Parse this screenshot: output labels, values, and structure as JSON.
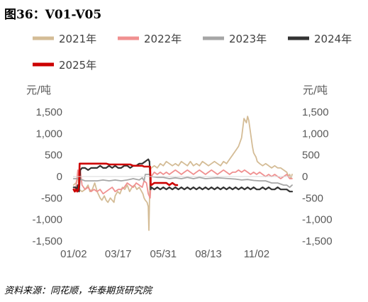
{
  "figure": {
    "title": "图36：V01-V05",
    "source": "资料来源：同花顺，华泰期货研究院"
  },
  "chart_data": {
    "type": "line",
    "y_unit_left": "元/吨",
    "y_unit_right": "元/吨",
    "xlabel": "",
    "ylabel": "",
    "ylim": [
      -1500,
      1500
    ],
    "yticks": [
      1500,
      1000,
      500,
      0,
      -500,
      -1000,
      -1500
    ],
    "ytick_labels": [
      "1,500",
      "1,000",
      "500",
      "0",
      "-500",
      "-1,000",
      "-1,500"
    ],
    "xlim": [
      0,
      364
    ],
    "xticks": [
      1,
      75,
      150,
      225,
      305
    ],
    "xtick_labels": [
      "01/02",
      "03/17",
      "05/31",
      "08/13",
      "11/02"
    ],
    "grid": false,
    "legend": "top",
    "series": [
      {
        "name": "2021年",
        "color": "#d4bc96",
        "x": [
          1,
          5,
          8,
          10,
          15,
          20,
          25,
          28,
          32,
          36,
          40,
          45,
          48,
          52,
          55,
          58,
          62,
          65,
          68,
          70,
          74,
          78,
          82,
          86,
          90,
          94,
          98,
          102,
          106,
          110,
          114,
          116,
          118,
          120,
          123,
          125,
          126,
          128,
          130,
          135,
          140,
          145,
          150,
          155,
          160,
          165,
          170,
          175,
          180,
          185,
          190,
          195,
          200,
          205,
          210,
          215,
          220,
          225,
          230,
          235,
          240,
          245,
          250,
          255,
          260,
          265,
          270,
          275,
          280,
          284,
          288,
          290,
          292,
          294,
          296,
          298,
          300,
          302,
          304,
          306,
          310,
          315,
          320,
          325,
          330,
          335,
          340,
          345,
          350,
          355,
          358,
          360,
          362,
          364
        ],
        "y": [
          -200,
          -150,
          0,
          -300,
          -350,
          -300,
          -200,
          -350,
          -300,
          -150,
          -350,
          -500,
          -550,
          -450,
          -550,
          -600,
          -500,
          -550,
          -600,
          -450,
          -350,
          -400,
          -250,
          -300,
          -200,
          -350,
          -250,
          -200,
          -300,
          -250,
          -350,
          -400,
          -500,
          -550,
          -600,
          -700,
          -1250,
          150,
          200,
          250,
          200,
          300,
          250,
          350,
          300,
          250,
          300,
          250,
          350,
          300,
          250,
          350,
          250,
          300,
          250,
          350,
          300,
          250,
          300,
          350,
          300,
          250,
          350,
          300,
          400,
          500,
          600,
          700,
          900,
          1350,
          1250,
          1400,
          1300,
          1100,
          900,
          700,
          550,
          500,
          450,
          350,
          300,
          250,
          300,
          250,
          200,
          250,
          200,
          200,
          150,
          100,
          0,
          50,
          -50,
          50
        ]
      },
      {
        "name": "2022年",
        "color": "#f09090",
        "x": [
          1,
          5,
          8,
          10,
          12,
          15,
          20,
          25,
          30,
          35,
          40,
          45,
          50,
          55,
          60,
          65,
          70,
          75,
          80,
          85,
          90,
          95,
          100,
          105,
          110,
          115,
          118,
          122,
          125,
          128,
          130,
          135,
          140,
          145,
          150,
          155,
          160,
          165,
          170,
          175,
          180,
          185,
          190,
          195,
          200,
          205,
          210,
          215,
          220,
          225,
          230,
          235,
          240,
          245,
          250,
          255,
          260,
          265,
          270,
          275,
          280,
          285,
          290,
          295,
          300,
          305,
          310,
          315,
          320,
          325,
          330,
          335,
          340,
          345,
          350,
          355,
          360,
          364
        ],
        "y": [
          -300,
          -250,
          150,
          -100,
          150,
          -200,
          -300,
          -250,
          -350,
          -300,
          -350,
          -300,
          -400,
          -350,
          -300,
          -250,
          -350,
          -300,
          -300,
          -250,
          -150,
          -200,
          -250,
          -150,
          -200,
          -250,
          -100,
          -150,
          -400,
          -500,
          0,
          100,
          50,
          100,
          50,
          100,
          50,
          100,
          150,
          100,
          50,
          100,
          150,
          100,
          50,
          100,
          150,
          100,
          50,
          100,
          150,
          100,
          50,
          100,
          150,
          100,
          50,
          100,
          100,
          150,
          100,
          150,
          100,
          50,
          100,
          50,
          100,
          50,
          0,
          50,
          0,
          50,
          0,
          -50,
          0,
          50,
          -50,
          -50
        ]
      },
      {
        "name": "2023年",
        "color": "#a6a6a6",
        "x": [
          1,
          10,
          20,
          30,
          40,
          50,
          60,
          70,
          80,
          90,
          100,
          110,
          115,
          118,
          120,
          125,
          128,
          130,
          140,
          150,
          160,
          170,
          180,
          190,
          200,
          210,
          220,
          230,
          240,
          250,
          260,
          270,
          280,
          290,
          300,
          310,
          320,
          330,
          340,
          350,
          355,
          360,
          364
        ],
        "y": [
          -50,
          -50,
          -100,
          -100,
          -100,
          -80,
          -100,
          -80,
          -100,
          -80,
          -50,
          -80,
          -30,
          -100,
          50,
          50,
          50,
          0,
          -20,
          -20,
          -50,
          -30,
          -50,
          -20,
          -50,
          -20,
          -50,
          -40,
          -30,
          -40,
          -50,
          -60,
          -80,
          -70,
          -90,
          -100,
          -100,
          -150,
          -150,
          -200,
          -200,
          -250,
          -200
        ]
      },
      {
        "name": "2024年",
        "color": "#333333",
        "x": [
          1,
          4,
          6,
          8,
          10,
          12,
          15,
          20,
          25,
          30,
          35,
          40,
          45,
          50,
          55,
          60,
          65,
          70,
          75,
          80,
          85,
          90,
          95,
          100,
          105,
          110,
          115,
          120,
          125,
          127,
          129,
          130,
          135,
          140,
          145,
          150,
          155,
          160,
          165,
          170,
          175,
          180,
          185,
          190,
          195,
          200,
          205,
          210,
          215,
          220,
          225,
          230,
          235,
          240,
          245,
          250,
          255,
          260,
          265,
          270,
          275,
          280,
          285,
          290,
          295,
          300,
          305,
          310,
          315,
          320,
          325,
          330,
          335,
          340,
          345,
          350,
          355,
          360,
          364
        ],
        "y": [
          -250,
          -250,
          -300,
          -200,
          -350,
          150,
          200,
          200,
          150,
          200,
          200,
          200,
          250,
          200,
          200,
          250,
          200,
          250,
          200,
          200,
          250,
          250,
          200,
          250,
          250,
          300,
          300,
          350,
          400,
          350,
          -300,
          -250,
          -300,
          -250,
          -300,
          -250,
          -300,
          -250,
          -300,
          -250,
          -300,
          -250,
          -300,
          -250,
          -300,
          -250,
          -300,
          -250,
          -300,
          -250,
          -300,
          -250,
          -300,
          -250,
          -300,
          -250,
          -300,
          -250,
          -300,
          -250,
          -300,
          -250,
          -300,
          -250,
          -300,
          -250,
          -300,
          -300,
          -250,
          -300,
          -250,
          -300,
          -300,
          -250,
          -300,
          -300,
          -300,
          -350,
          -350
        ]
      },
      {
        "name": "2025年",
        "color": "#cc0000",
        "x": [
          1,
          3,
          5,
          7,
          9,
          10,
          11,
          12,
          15,
          20,
          25,
          30,
          35,
          40,
          45,
          50,
          55,
          60,
          65,
          70,
          75,
          80,
          85,
          90,
          95,
          100,
          105,
          110,
          115,
          118,
          120,
          122,
          125,
          128,
          129,
          130,
          135,
          140,
          145,
          150,
          155,
          160,
          165,
          170,
          173
        ],
        "y": [
          -300,
          -350,
          -300,
          -350,
          -300,
          -200,
          300,
          300,
          300,
          300,
          300,
          300,
          300,
          300,
          300,
          300,
          300,
          280,
          280,
          280,
          280,
          280,
          280,
          280,
          280,
          250,
          250,
          250,
          250,
          230,
          230,
          230,
          230,
          230,
          -200,
          -200,
          -150,
          -150,
          -150,
          -150,
          -150,
          -200,
          -150,
          -200,
          -200
        ]
      }
    ]
  }
}
